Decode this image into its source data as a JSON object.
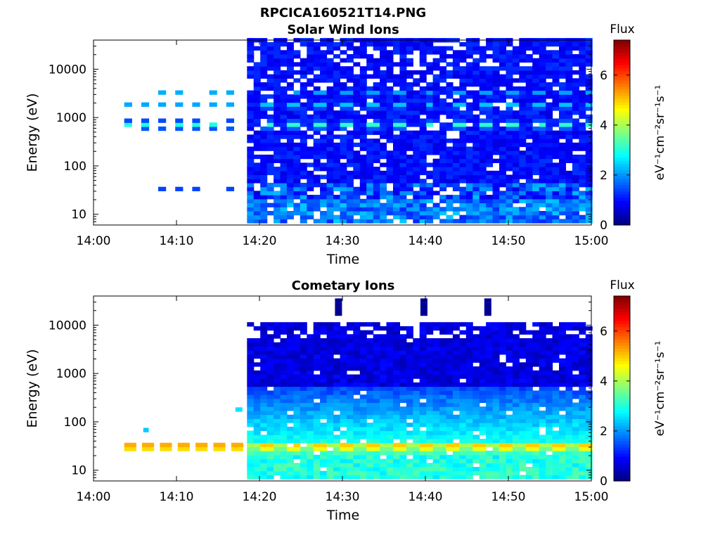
{
  "figure_title": "RPCICA160521T14.PNG",
  "chart_data": [
    {
      "type": "heatmap",
      "title": "Solar Wind Ions",
      "xlabel": "Time",
      "ylabel": "Energy (eV)",
      "x_ticks": [
        "14:00",
        "14:10",
        "14:20",
        "14:30",
        "14:40",
        "14:50",
        "15:00"
      ],
      "y_ticks": [
        "10",
        "100",
        "1000",
        "10000"
      ],
      "xlim": [
        "14:00",
        "15:00"
      ],
      "ylim": [
        6,
        40000
      ],
      "y_scale": "log",
      "colorbar": {
        "title": "Flux",
        "label": "eV⁻¹cm⁻²sr⁻¹s⁻¹",
        "ticks": [
          "0",
          "2",
          "4",
          "6"
        ],
        "range": [
          0,
          7.4
        ],
        "colormap": "jet"
      },
      "sparse_coverage_end": "14:18:30",
      "bands": [
        {
          "energy_ev": 650,
          "peak_flux": 3.2,
          "pattern": "periodic pulses, ~3.3 min period"
        },
        {
          "energy_ev": 1600,
          "peak_flux": 2.8,
          "pattern": "periodic pulses"
        },
        {
          "energy_ev": 3000,
          "peak_flux": 2.2,
          "pattern": "periodic pulses"
        },
        {
          "energy_ev": 28,
          "peak_flux": 2.6,
          "pattern": "intermittent"
        }
      ],
      "background_flux": 0.8
    },
    {
      "type": "heatmap",
      "title": "Cometary Ions",
      "xlabel": "Time",
      "ylabel": "Energy (eV)",
      "x_ticks": [
        "14:00",
        "14:10",
        "14:20",
        "14:30",
        "14:40",
        "14:50",
        "15:00"
      ],
      "y_ticks": [
        "10",
        "100",
        "1000",
        "10000"
      ],
      "xlim": [
        "14:00",
        "15:00"
      ],
      "ylim": [
        6,
        40000
      ],
      "y_scale": "log",
      "colorbar": {
        "title": "Flux",
        "label": "eV⁻¹cm⁻²sr⁻¹s⁻¹",
        "ticks": [
          "0",
          "2",
          "4",
          "6"
        ],
        "range": [
          0,
          7.4
        ],
        "colormap": "jet"
      },
      "sparse_coverage_end": "14:18:30",
      "bands": [
        {
          "energy_ev": 28,
          "peak_flux": 6.0,
          "pattern": "continuous, pulsing"
        },
        {
          "energy_ev": 12,
          "peak_flux": 3.0,
          "pattern": "continuous"
        },
        {
          "energy_ev": 60,
          "peak_flux": 2.2,
          "pattern": "continuous, decreasing with energy"
        }
      ],
      "background_flux": 0.7
    }
  ]
}
